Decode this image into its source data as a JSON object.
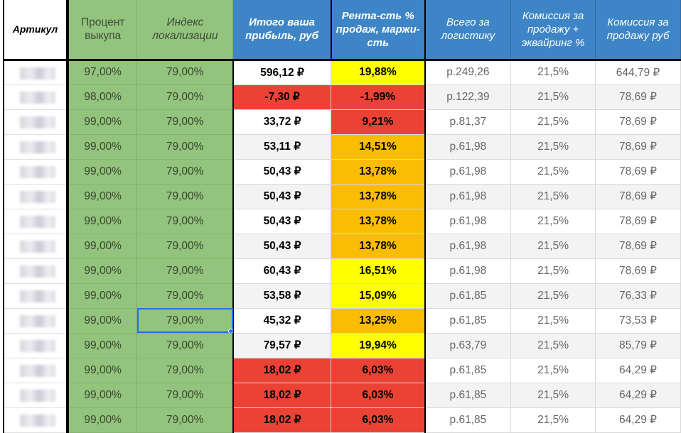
{
  "headers": {
    "article": "Артикул",
    "buyout_pct": "Процент выкупа",
    "loc_index": "Индекс локализации",
    "profit": "Итого ваша прибыль, руб",
    "rentability": "Рента-сть % продаж, маржи-сть",
    "logistics": "Всего за логистику",
    "commission_pct": "Комиссия за продажу + эквайринг %",
    "commission_rub": "Комиссия за продажу руб"
  },
  "colors": {
    "green": "#93c47d",
    "blue": "#3d85c6",
    "red": "#ea4335",
    "yellow": "#ffff00",
    "orange": "#fbbc04",
    "selection": "#1a73e8"
  },
  "selected": {
    "row": 10,
    "column": "loc_index"
  },
  "rows": [
    {
      "buyout": "97,00%",
      "index": "79,00%",
      "profit": "596,12 ₽",
      "profit_color": "white",
      "rent": "19,88%",
      "rent_color": "yellow",
      "log": "р.249,26",
      "comm_pct": "21,5%",
      "comm_rub": "644,79 ₽"
    },
    {
      "buyout": "98,00%",
      "index": "79,00%",
      "profit": "-7,30 ₽",
      "profit_color": "red",
      "rent": "-1,99%",
      "rent_color": "red",
      "log": "р.122,39",
      "comm_pct": "21,5%",
      "comm_rub": "78,69 ₽"
    },
    {
      "buyout": "99,00%",
      "index": "79,00%",
      "profit": "33,72 ₽",
      "profit_color": "white",
      "rent": "9,21%",
      "rent_color": "red",
      "log": "р.81,37",
      "comm_pct": "21,5%",
      "comm_rub": "78,69 ₽"
    },
    {
      "buyout": "99,00%",
      "index": "79,00%",
      "profit": "53,11 ₽",
      "profit_color": "lgray",
      "rent": "14,51%",
      "rent_color": "orange",
      "log": "р.61,98",
      "comm_pct": "21,5%",
      "comm_rub": "78,69 ₽"
    },
    {
      "buyout": "99,00%",
      "index": "79,00%",
      "profit": "50,43 ₽",
      "profit_color": "white",
      "rent": "13,78%",
      "rent_color": "orange",
      "log": "р.61,98",
      "comm_pct": "21,5%",
      "comm_rub": "78,69 ₽"
    },
    {
      "buyout": "99,00%",
      "index": "79,00%",
      "profit": "50,43 ₽",
      "profit_color": "lgray",
      "rent": "13,78%",
      "rent_color": "orange",
      "log": "р.61,98",
      "comm_pct": "21,5%",
      "comm_rub": "78,69 ₽"
    },
    {
      "buyout": "99,00%",
      "index": "79,00%",
      "profit": "50,43 ₽",
      "profit_color": "white",
      "rent": "13,78%",
      "rent_color": "orange",
      "log": "р.61,98",
      "comm_pct": "21,5%",
      "comm_rub": "78,69 ₽"
    },
    {
      "buyout": "99,00%",
      "index": "79,00%",
      "profit": "50,43 ₽",
      "profit_color": "lgray",
      "rent": "13,78%",
      "rent_color": "orange",
      "log": "р.61,98",
      "comm_pct": "21,5%",
      "comm_rub": "78,69 ₽"
    },
    {
      "buyout": "99,00%",
      "index": "79,00%",
      "profit": "60,43 ₽",
      "profit_color": "white",
      "rent": "16,51%",
      "rent_color": "yellow",
      "log": "р.61,98",
      "comm_pct": "21,5%",
      "comm_rub": "78,69 ₽"
    },
    {
      "buyout": "99,00%",
      "index": "79,00%",
      "profit": "53,58 ₽",
      "profit_color": "lgray",
      "rent": "15,09%",
      "rent_color": "yellow",
      "log": "р.61,85",
      "comm_pct": "21,5%",
      "comm_rub": "76,33 ₽"
    },
    {
      "buyout": "99,00%",
      "index": "79,00%",
      "profit": "45,32 ₽",
      "profit_color": "white",
      "rent": "13,25%",
      "rent_color": "orange",
      "log": "р.61,85",
      "comm_pct": "21,5%",
      "comm_rub": "73,53 ₽"
    },
    {
      "buyout": "99,00%",
      "index": "79,00%",
      "profit": "79,57 ₽",
      "profit_color": "lgray",
      "rent": "19,94%",
      "rent_color": "yellow",
      "log": "р.63,79",
      "comm_pct": "21,5%",
      "comm_rub": "85,79 ₽"
    },
    {
      "buyout": "99,00%",
      "index": "79,00%",
      "profit": "18,02 ₽",
      "profit_color": "red",
      "rent": "6,03%",
      "rent_color": "red",
      "log": "р.61,85",
      "comm_pct": "21,5%",
      "comm_rub": "64,29 ₽"
    },
    {
      "buyout": "99,00%",
      "index": "79,00%",
      "profit": "18,02 ₽",
      "profit_color": "red",
      "rent": "6,03%",
      "rent_color": "red",
      "log": "р.61,85",
      "comm_pct": "21,5%",
      "comm_rub": "64,29 ₽"
    },
    {
      "buyout": "99,00%",
      "index": "79,00%",
      "profit": "18,02 ₽",
      "profit_color": "red",
      "rent": "6,03%",
      "rent_color": "red",
      "log": "р.61,85",
      "comm_pct": "21,5%",
      "comm_rub": "64,29 ₽"
    }
  ]
}
